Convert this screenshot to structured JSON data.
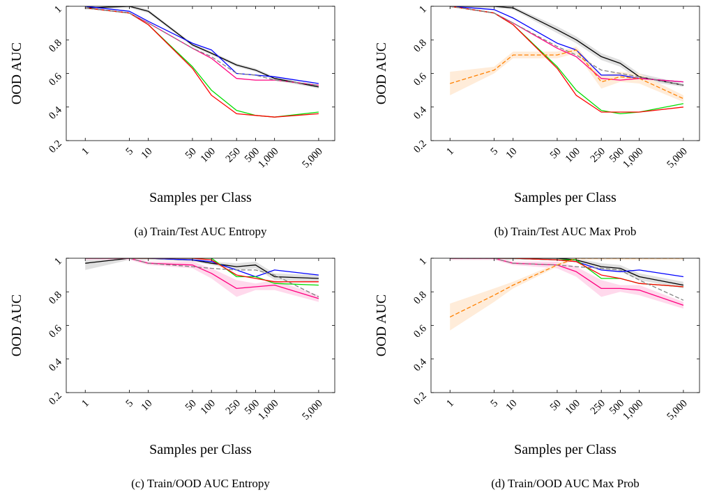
{
  "chart_data": [
    {
      "type": "line",
      "caption": "(a) Train/Test AUC Entropy",
      "xlabel": "Samples per Class",
      "ylabel": "OOD AUC",
      "x": [
        1,
        5,
        10,
        50,
        100,
        250,
        500,
        1000,
        5000
      ],
      "x_tick_labels": [
        "1",
        "5",
        "10",
        "50",
        "100",
        "250",
        "500",
        "1,000",
        "5,000"
      ],
      "y_tick_labels": [
        "0.2",
        "0.4",
        "0.6",
        "0.8",
        "1"
      ],
      "xscale": "log",
      "ylim": [
        0.2,
        1.0
      ],
      "grid": false,
      "series": [
        {
          "color": "#000000",
          "style": "solid",
          "values": [
            0.99,
            1.0,
            0.97,
            0.77,
            0.72,
            0.65,
            0.62,
            0.57,
            0.52
          ],
          "band": [
            0.01,
            0.01,
            0.01,
            0.01,
            0.01,
            0.01,
            0.01,
            0.01,
            0.01
          ]
        },
        {
          "color": "#0000ff",
          "style": "solid",
          "values": [
            1.0,
            0.97,
            0.91,
            0.78,
            0.74,
            0.6,
            0.59,
            0.58,
            0.54
          ]
        },
        {
          "color": "#ff0080",
          "style": "solid",
          "values": [
            0.99,
            0.96,
            0.9,
            0.75,
            0.69,
            0.57,
            0.56,
            0.56,
            0.53
          ]
        },
        {
          "color": "#00dd00",
          "style": "solid",
          "values": [
            0.99,
            0.96,
            0.89,
            0.64,
            0.5,
            0.38,
            0.35,
            0.34,
            0.37
          ]
        },
        {
          "color": "#ff0000",
          "style": "solid",
          "values": [
            0.99,
            0.96,
            0.89,
            0.63,
            0.47,
            0.36,
            0.35,
            0.34,
            0.36
          ]
        },
        {
          "color": "#808080",
          "style": "dashed",
          "values": [
            0.99,
            0.96,
            0.9,
            0.75,
            0.7,
            0.6,
            0.59,
            0.56,
            0.53
          ]
        }
      ]
    },
    {
      "type": "line",
      "caption": "(b) Train/Test AUC Max Prob",
      "xlabel": "Samples per Class",
      "ylabel": "OOD AUC",
      "x": [
        1,
        5,
        10,
        50,
        100,
        250,
        500,
        1000,
        5000
      ],
      "x_tick_labels": [
        "1",
        "5",
        "10",
        "50",
        "100",
        "250",
        "500",
        "1,000",
        "5,000"
      ],
      "y_tick_labels": [
        "0.2",
        "0.4",
        "0.6",
        "0.8",
        "1"
      ],
      "xscale": "log",
      "ylim": [
        0.2,
        1.0
      ],
      "grid": false,
      "series": [
        {
          "color": "#000000",
          "style": "solid",
          "values": [
            1.0,
            1.0,
            0.99,
            0.86,
            0.8,
            0.7,
            0.66,
            0.58,
            0.53
          ],
          "band": [
            0.01,
            0.01,
            0.01,
            0.02,
            0.02,
            0.02,
            0.02,
            0.02,
            0.01
          ]
        },
        {
          "color": "#0000ff",
          "style": "solid",
          "values": [
            1.0,
            0.98,
            0.93,
            0.78,
            0.74,
            0.59,
            0.59,
            0.57,
            0.55
          ]
        },
        {
          "color": "#ff0080",
          "style": "solid",
          "values": [
            1.0,
            0.96,
            0.9,
            0.75,
            0.7,
            0.57,
            0.56,
            0.57,
            0.55
          ]
        },
        {
          "color": "#00dd00",
          "style": "solid",
          "values": [
            1.0,
            0.96,
            0.89,
            0.64,
            0.5,
            0.38,
            0.36,
            0.37,
            0.42
          ]
        },
        {
          "color": "#ff0000",
          "style": "solid",
          "values": [
            1.0,
            0.96,
            0.89,
            0.63,
            0.47,
            0.37,
            0.37,
            0.37,
            0.4
          ]
        },
        {
          "color": "#808080",
          "style": "dashed",
          "values": [
            1.0,
            0.96,
            0.9,
            0.76,
            0.71,
            0.62,
            0.6,
            0.58,
            0.53
          ]
        },
        {
          "color": "#ff8000",
          "style": "dashed",
          "values": [
            0.54,
            0.62,
            0.71,
            0.71,
            0.74,
            0.55,
            0.58,
            0.57,
            0.45
          ],
          "band": [
            0.07,
            0.02,
            0.02,
            0.02,
            0.02,
            0.04,
            0.03,
            0.03,
            0.02
          ]
        }
      ]
    },
    {
      "type": "line",
      "caption": "(c) Train/OOD AUC Entropy",
      "xlabel": "Samples per Class",
      "ylabel": "OOD AUC",
      "x": [
        1,
        5,
        10,
        50,
        100,
        250,
        500,
        1000,
        5000
      ],
      "x_tick_labels": [
        "1",
        "5",
        "10",
        "50",
        "100",
        "250",
        "500",
        "1,000",
        "5,000"
      ],
      "y_tick_labels": [
        "0.2",
        "0.4",
        "0.6",
        "0.8",
        "1"
      ],
      "xscale": "log",
      "ylim": [
        0.2,
        1.0
      ],
      "grid": false,
      "series": [
        {
          "color": "#000000",
          "style": "solid",
          "values": [
            0.97,
            1.0,
            1.0,
            0.99,
            0.97,
            0.95,
            0.96,
            0.89,
            0.88
          ],
          "band": [
            0.04,
            0.01,
            0.01,
            0.01,
            0.01,
            0.02,
            0.02,
            0.02,
            0.02
          ]
        },
        {
          "color": "#0000ff",
          "style": "solid",
          "values": [
            1.0,
            1.0,
            1.0,
            0.99,
            0.98,
            0.93,
            0.89,
            0.93,
            0.9
          ]
        },
        {
          "color": "#00dd00",
          "style": "solid",
          "values": [
            1.0,
            1.0,
            1.0,
            1.0,
            1.0,
            0.89,
            0.89,
            0.85,
            0.84
          ]
        },
        {
          "color": "#ff0000",
          "style": "solid",
          "values": [
            1.0,
            1.0,
            1.0,
            1.0,
            0.99,
            0.9,
            0.88,
            0.86,
            0.86
          ]
        },
        {
          "color": "#ff0080",
          "style": "solid",
          "values": [
            1.0,
            1.0,
            0.97,
            0.96,
            0.91,
            0.82,
            0.83,
            0.84,
            0.76
          ],
          "band": [
            0.01,
            0.01,
            0.01,
            0.02,
            0.03,
            0.05,
            0.02,
            0.03,
            0.02
          ]
        },
        {
          "color": "#808080",
          "style": "dashed",
          "values": [
            1.0,
            1.0,
            0.97,
            0.95,
            0.94,
            0.93,
            0.93,
            0.9,
            0.77
          ]
        }
      ]
    },
    {
      "type": "line",
      "caption": "(d) Train/OOD AUC Max Prob",
      "xlabel": "Samples per Class",
      "ylabel": "OOD AUC",
      "x": [
        1,
        5,
        10,
        50,
        100,
        250,
        500,
        1000,
        5000
      ],
      "x_tick_labels": [
        "1",
        "5",
        "10",
        "50",
        "100",
        "250",
        "500",
        "1,000",
        "5,000"
      ],
      "y_tick_labels": [
        "0.2",
        "0.4",
        "0.6",
        "0.8",
        "1"
      ],
      "xscale": "log",
      "ylim": [
        0.2,
        1.0
      ],
      "grid": false,
      "series": [
        {
          "color": "#000000",
          "style": "solid",
          "values": [
            1.0,
            1.0,
            1.0,
            1.0,
            0.99,
            0.95,
            0.94,
            0.89,
            0.84
          ],
          "band": [
            0.01,
            0.01,
            0.01,
            0.01,
            0.01,
            0.02,
            0.02,
            0.02,
            0.02
          ]
        },
        {
          "color": "#0000ff",
          "style": "solid",
          "values": [
            1.0,
            1.0,
            1.0,
            0.99,
            0.98,
            0.93,
            0.92,
            0.93,
            0.89
          ]
        },
        {
          "color": "#00dd00",
          "style": "solid",
          "values": [
            1.0,
            1.0,
            1.0,
            0.99,
            0.99,
            0.88,
            0.88,
            0.85,
            0.83
          ]
        },
        {
          "color": "#ff0000",
          "style": "solid",
          "values": [
            1.0,
            1.0,
            1.0,
            0.99,
            0.98,
            0.9,
            0.88,
            0.85,
            0.83
          ]
        },
        {
          "color": "#ff0080",
          "style": "solid",
          "values": [
            1.0,
            1.0,
            0.97,
            0.96,
            0.92,
            0.82,
            0.82,
            0.81,
            0.72
          ],
          "band": [
            0.01,
            0.01,
            0.01,
            0.02,
            0.03,
            0.05,
            0.02,
            0.03,
            0.02
          ]
        },
        {
          "color": "#808080",
          "style": "dashed",
          "values": [
            1.0,
            1.0,
            0.97,
            0.96,
            0.95,
            0.94,
            0.93,
            0.87,
            0.75
          ]
        },
        {
          "color": "#ff8000",
          "style": "dashed",
          "values": [
            0.65,
            0.78,
            0.84,
            0.96,
            1.0,
            1.0,
            1.0,
            1.0,
            1.0
          ],
          "band": [
            0.08,
            0.04,
            0.02,
            0.01,
            0.01,
            0.01,
            0.01,
            0.01,
            0.01
          ]
        }
      ]
    }
  ]
}
